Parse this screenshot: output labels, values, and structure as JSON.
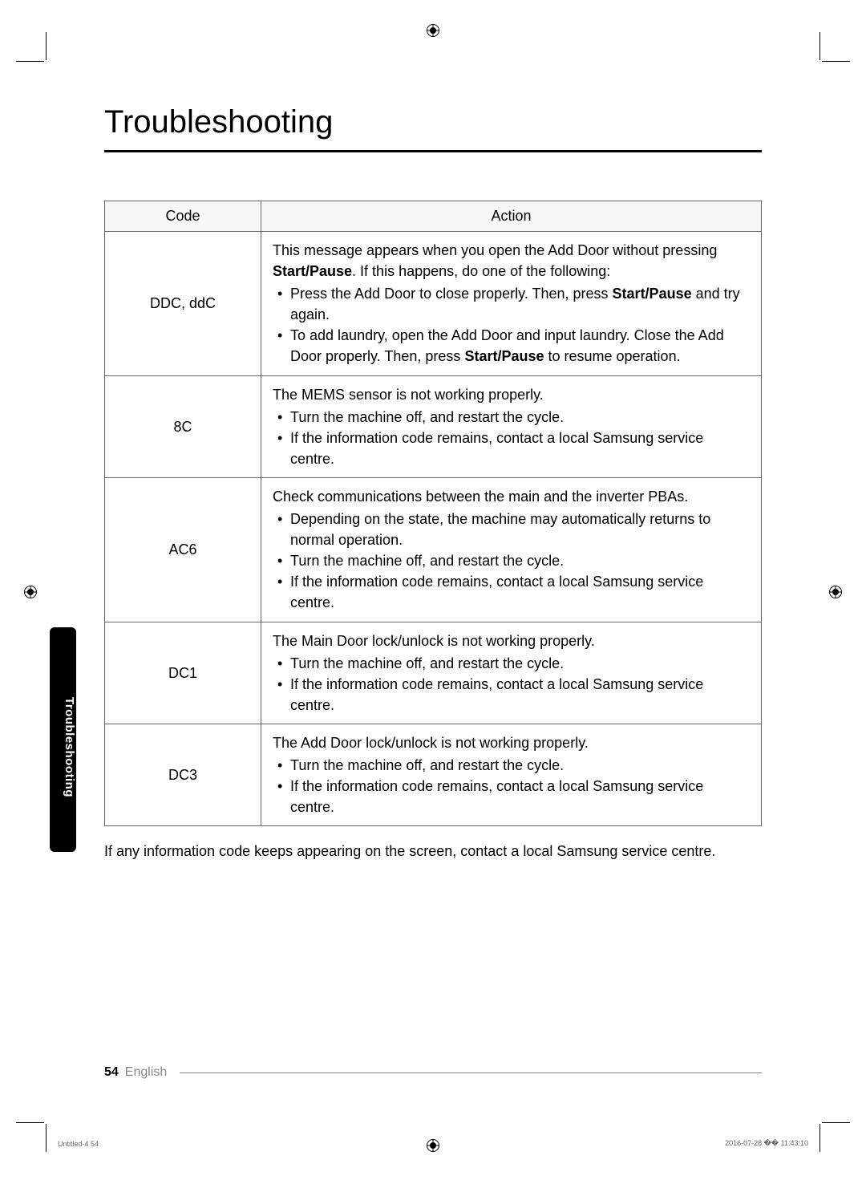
{
  "page_title": "Troubleshooting",
  "side_tab": "Troubleshooting",
  "table": {
    "headers": {
      "code": "Code",
      "action": "Action"
    },
    "rows": [
      {
        "code": "DDC, ddC",
        "intro_1": "This message appears when you open the Add Door without pressing ",
        "intro_bold_1": "Start/Pause",
        "intro_2": ". If this happens, do one of the following:",
        "bullet_1a": "Press the Add Door to close properly. Then, press ",
        "bullet_1b_bold": "Start/Pause",
        "bullet_1c": " and try again.",
        "bullet_2a": "To add laundry, open the Add Door and input laundry. Close the Add Door properly. Then, press ",
        "bullet_2b_bold": "Start/Pause",
        "bullet_2c": " to resume operation."
      },
      {
        "code": "8C",
        "intro": "The MEMS sensor is not working properly.",
        "bullet_1": "Turn the machine off, and restart the cycle.",
        "bullet_2": "If the information code remains, contact a local Samsung service centre."
      },
      {
        "code": "AC6",
        "intro": "Check communications between the main and the inverter PBAs.",
        "bullet_1": "Depending on the state, the machine may automatically returns to normal operation.",
        "bullet_2": "Turn the machine off, and restart the cycle.",
        "bullet_3": "If the information code remains, contact a local Samsung service centre."
      },
      {
        "code": "DC1",
        "intro": "The Main Door lock/unlock is not working properly.",
        "bullet_1": "Turn the machine off, and restart the cycle.",
        "bullet_2": "If the information code remains, contact a local Samsung service centre."
      },
      {
        "code": "DC3",
        "intro": "The Add Door lock/unlock is not working properly.",
        "bullet_1": "Turn the machine off, and restart the cycle.",
        "bullet_2": "If the information code remains, contact a local Samsung service centre."
      }
    ]
  },
  "note": "If any information code keeps appearing on the screen, contact a local Samsung service centre.",
  "footer": {
    "page_num": "54",
    "language": "English"
  },
  "print_meta": {
    "left": "Untitled-4   54",
    "right": "2016-07-28   �� 11:43:10"
  }
}
